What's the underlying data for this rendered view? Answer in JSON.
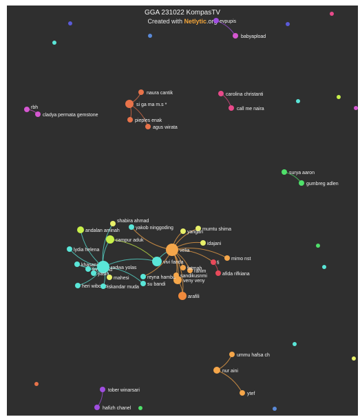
{
  "header": {
    "title": "GGA 231022 KompasTV",
    "subtitle_prefix": "Created with ",
    "brand": "Netlytic",
    "subtitle_suffix": ".org"
  },
  "colors": {
    "background": "#2f2f2f",
    "orange": "#f08a3c",
    "coral": "#e8734a",
    "magenta": "#d557d1",
    "green": "#4fe06a",
    "cyan": "#5ae6d8",
    "yellow": "#e8f06a",
    "lime": "#c8f04a",
    "amber": "#f5a64a",
    "violet": "#a04ee0",
    "blue": "#5a8ad8",
    "red": "#e84a5a",
    "pink": "#e84a8a",
    "indigo": "#5a5ad8"
  },
  "nodes": [
    {
      "id": "evpupis",
      "label": "evpupis",
      "color": "violet"
    },
    {
      "id": "babyapload",
      "label": "babyapload",
      "color": "magenta"
    },
    {
      "id": "naura",
      "label": "naura cantik",
      "color": "coral"
    },
    {
      "id": "hub1",
      "label": "si ga ma m.s *",
      "color": "coral"
    },
    {
      "id": "pieples",
      "label": "pieples enak",
      "color": "coral"
    },
    {
      "id": "agus",
      "label": "agus wirata",
      "color": "coral"
    },
    {
      "id": "carolina",
      "label": "carolina christanti",
      "color": "pink"
    },
    {
      "id": "callme",
      "label": "call me naira",
      "color": "pink"
    },
    {
      "id": "rbh",
      "label": "rbh",
      "color": "magenta"
    },
    {
      "id": "cladya",
      "label": "cladya permata gemstone",
      "color": "magenta"
    },
    {
      "id": "surya",
      "label": "surya aaron",
      "color": "green"
    },
    {
      "id": "gumbreg",
      "label": "gumbreg adlen",
      "color": "green"
    },
    {
      "id": "shabira",
      "label": "shabira ahmad",
      "color": "yellow"
    },
    {
      "id": "yakob",
      "label": "yakob ninggoding",
      "color": "cyan"
    },
    {
      "id": "mumtu",
      "label": "mumtu shima",
      "color": "yellow"
    },
    {
      "id": "andalan",
      "label": "andalan aminah",
      "color": "lime"
    },
    {
      "id": "yangan",
      "label": "yangan",
      "color": "yellow"
    },
    {
      "id": "campur",
      "label": "campur aduk",
      "color": "lime"
    },
    {
      "id": "idajani",
      "label": "idajani",
      "color": "yellow"
    },
    {
      "id": "mimo",
      "label": "mimo nst",
      "color": "amber"
    },
    {
      "id": "lydia",
      "label": "lydia helena",
      "color": "cyan"
    },
    {
      "id": "khasani",
      "label": "khasani",
      "color": "cyan"
    },
    {
      "id": "ferdinand",
      "label": "ferdinand",
      "color": "cyan"
    },
    {
      "id": "rahim",
      "label": "rahim",
      "color": "amber"
    },
    {
      "id": "fi",
      "label": "fi",
      "color": "red"
    },
    {
      "id": "afida",
      "label": "afida rifkiana",
      "color": "red"
    },
    {
      "id": "radwa",
      "label": "radwa yolas",
      "color": "cyan"
    },
    {
      "id": "vivi",
      "label": "vivi fanda",
      "color": "cyan"
    },
    {
      "id": "velia",
      "label": "velia",
      "color": "amber"
    },
    {
      "id": "veny",
      "label": "veny veny",
      "color": "amber"
    },
    {
      "id": "yasin",
      "label": "yasin",
      "color": "cyan"
    },
    {
      "id": "mahesi",
      "label": "mahesi",
      "color": "yellow"
    },
    {
      "id": "reyna",
      "label": "reyna hamba",
      "color": "cyan"
    },
    {
      "id": "fatmah",
      "label": "fatmah",
      "color": "amber"
    },
    {
      "id": "sandikusnmi",
      "label": "sandikusnmi",
      "color": "amber"
    },
    {
      "id": "heri",
      "label": "heri wibowo",
      "color": "cyan"
    },
    {
      "id": "iskandar",
      "label": "iskandar muda",
      "color": "cyan"
    },
    {
      "id": "su",
      "label": "su bandi",
      "color": "cyan"
    },
    {
      "id": "arafli",
      "label": "arafili",
      "color": "orange"
    },
    {
      "id": "ummu",
      "label": "ummu hafsa ch",
      "color": "amber"
    },
    {
      "id": "nur",
      "label": "nur aini",
      "color": "amber"
    },
    {
      "id": "ytef",
      "label": "ytef",
      "color": "amber"
    },
    {
      "id": "tober",
      "label": "tober winarsari",
      "color": "violet"
    },
    {
      "id": "hafizh",
      "label": "hafizh chanel",
      "color": "violet"
    }
  ],
  "edges": [
    [
      "evpupis",
      "babyapload"
    ],
    [
      "naura",
      "hub1"
    ],
    [
      "hub1",
      "pieples"
    ],
    [
      "hub1",
      "agus"
    ],
    [
      "carolina",
      "callme"
    ],
    [
      "rbh",
      "cladya"
    ],
    [
      "surya",
      "gumbreg"
    ],
    [
      "ummu",
      "nur"
    ],
    [
      "nur",
      "ytef"
    ],
    [
      "tober",
      "hafizh"
    ],
    [
      "radwa",
      "lydia"
    ],
    [
      "radwa",
      "khasani"
    ],
    [
      "radwa",
      "ferdinand"
    ],
    [
      "radwa",
      "heri"
    ],
    [
      "radwa",
      "iskandar"
    ],
    [
      "radwa",
      "campur"
    ],
    [
      "radwa",
      "andalan"
    ],
    [
      "radwa",
      "shabira"
    ],
    [
      "radwa",
      "yasin"
    ],
    [
      "radwa",
      "mahesi"
    ],
    [
      "radwa",
      "su"
    ],
    [
      "radwa",
      "vivi"
    ],
    [
      "velia",
      "veny"
    ],
    [
      "velia",
      "arafli"
    ],
    [
      "velia",
      "fatmah"
    ],
    [
      "velia",
      "rahim"
    ],
    [
      "velia",
      "mimo"
    ],
    [
      "velia",
      "idajani"
    ],
    [
      "velia",
      "yangan"
    ],
    [
      "velia",
      "mumtu"
    ],
    [
      "velia",
      "yakob"
    ],
    [
      "velia",
      "sandikusnmi"
    ],
    [
      "velia",
      "reyna"
    ],
    [
      "velia",
      "fi"
    ],
    [
      "veny",
      "arafli"
    ],
    [
      "fi",
      "afida"
    ],
    [
      "vivi",
      "velia"
    ],
    [
      "campur",
      "vivi"
    ]
  ]
}
